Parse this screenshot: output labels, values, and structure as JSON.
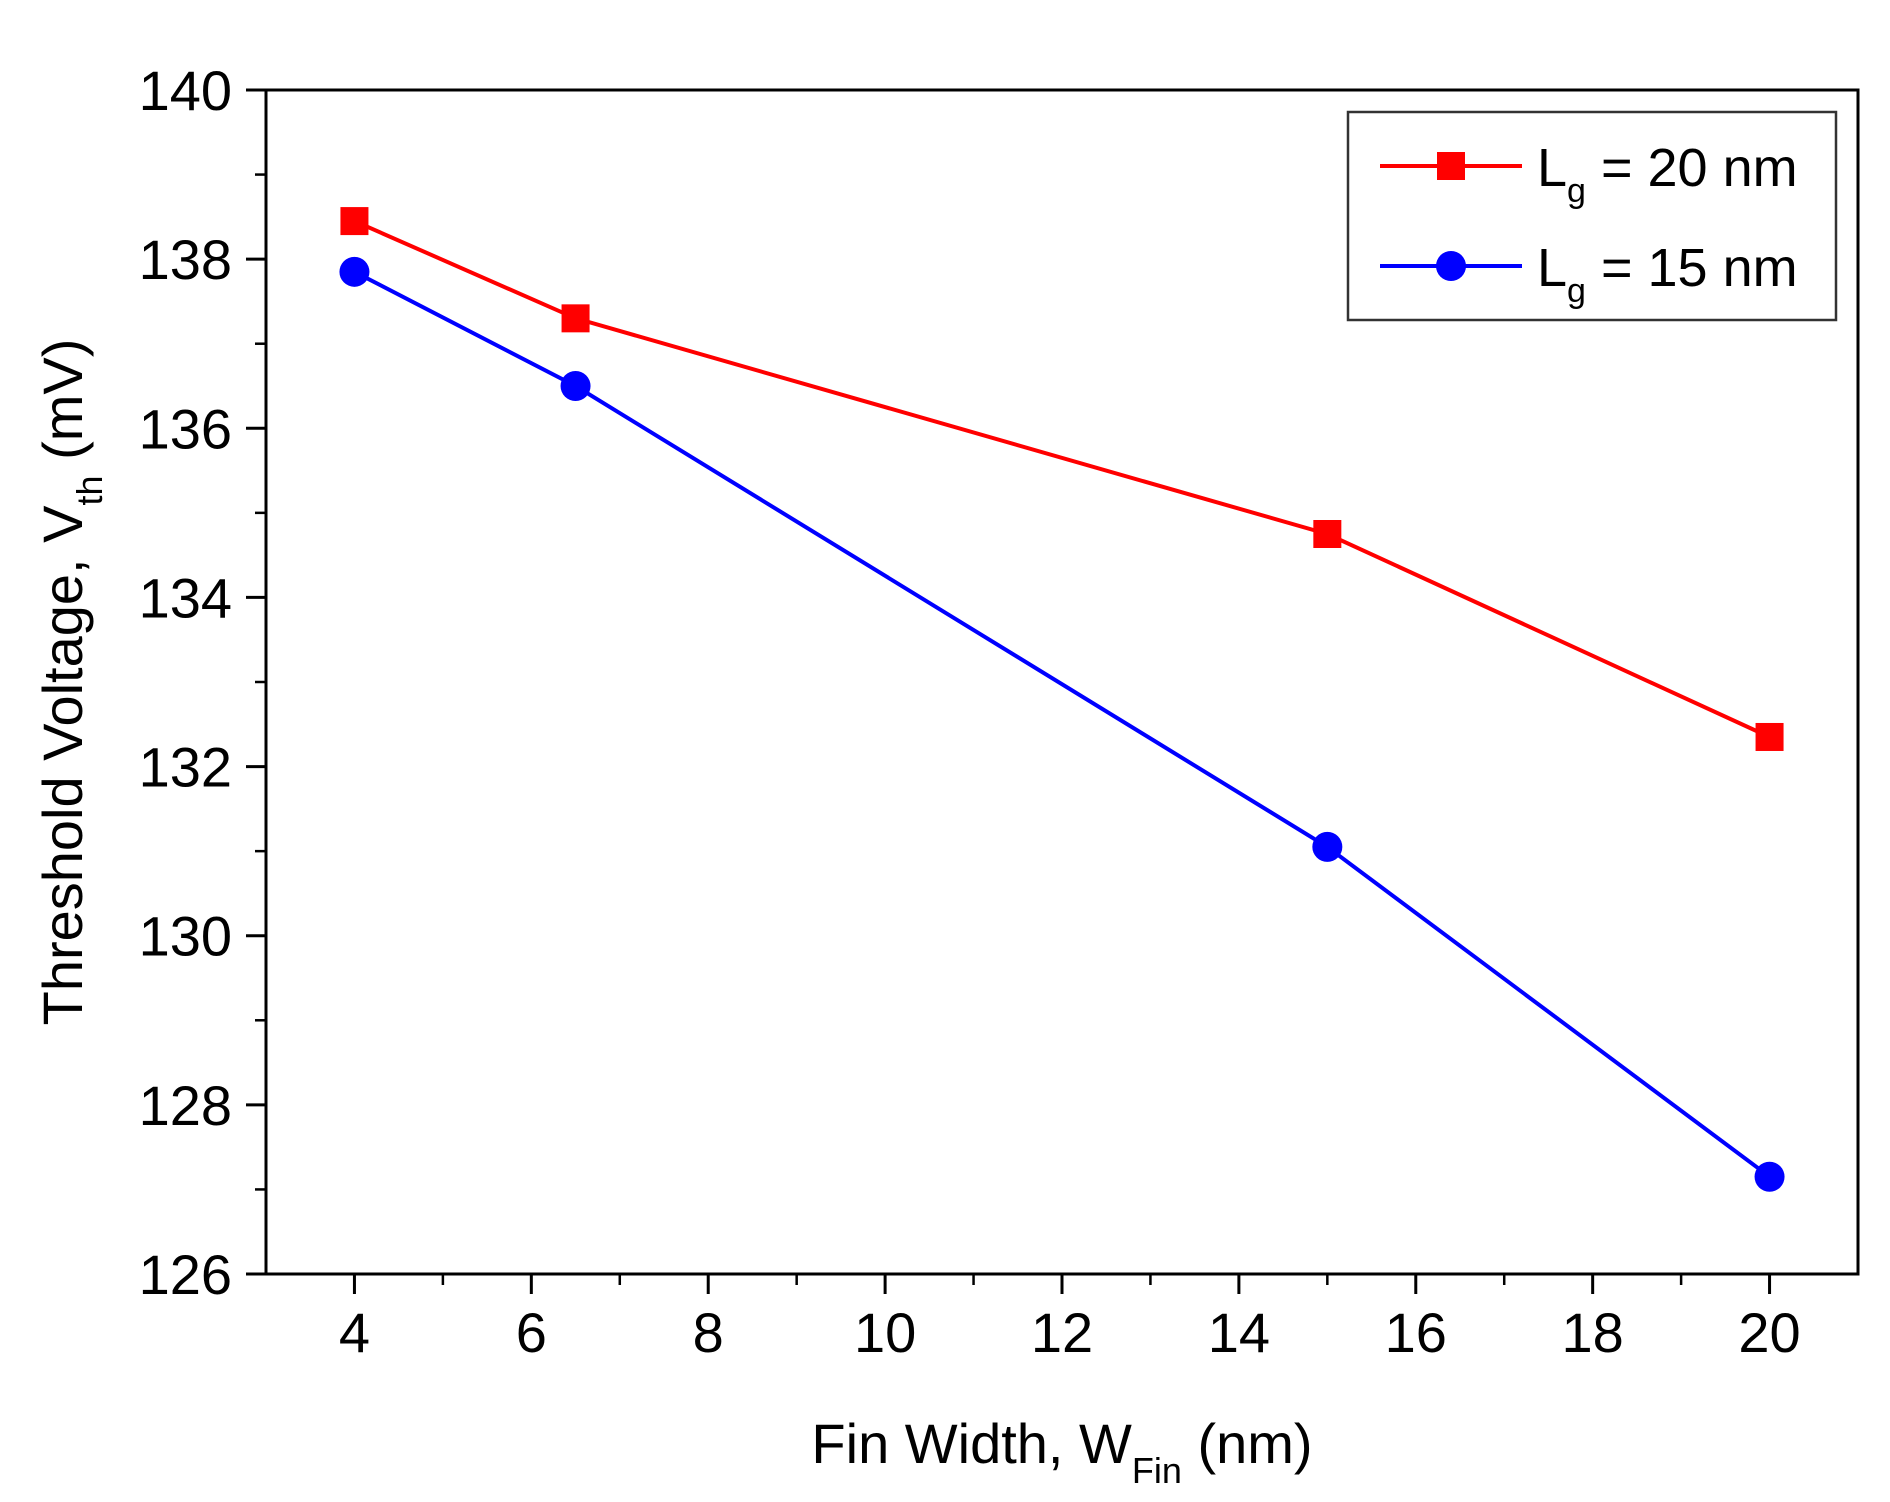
{
  "chart_data": {
    "type": "line",
    "title": "",
    "xlabel": {
      "prefix": "Fin Width, W",
      "sub": "Fin",
      "suffix": " (nm)"
    },
    "ylabel": {
      "prefix": "Threshold Voltage, V",
      "sub": "th",
      "suffix": " (mV)"
    },
    "xlim": [
      3,
      21
    ],
    "ylim": [
      126,
      140
    ],
    "xticks": [
      4,
      6,
      8,
      10,
      12,
      14,
      16,
      18,
      20
    ],
    "xticks_minor": [
      5,
      7,
      9,
      11,
      13,
      15,
      17,
      19
    ],
    "yticks": [
      126,
      128,
      130,
      132,
      134,
      136,
      138,
      140
    ],
    "yticks_minor": [
      127,
      129,
      131,
      133,
      135,
      137,
      139
    ],
    "grid": false,
    "legend_position": "top-right",
    "series": [
      {
        "name": "Lg = 20 nm",
        "label_main": "L",
        "label_sub": "g",
        "label_rest": " = 20 nm",
        "color": "#ff0000",
        "marker": "square",
        "x": [
          4,
          6.5,
          15,
          20
        ],
        "y": [
          138.45,
          137.3,
          134.75,
          132.35
        ]
      },
      {
        "name": "Lg = 15 nm",
        "label_main": "L",
        "label_sub": "g",
        "label_rest": " = 15 nm",
        "color": "#0000ff",
        "marker": "circle",
        "x": [
          4,
          6.5,
          15,
          20
        ],
        "y": [
          137.85,
          136.5,
          131.05,
          127.15
        ]
      }
    ]
  }
}
